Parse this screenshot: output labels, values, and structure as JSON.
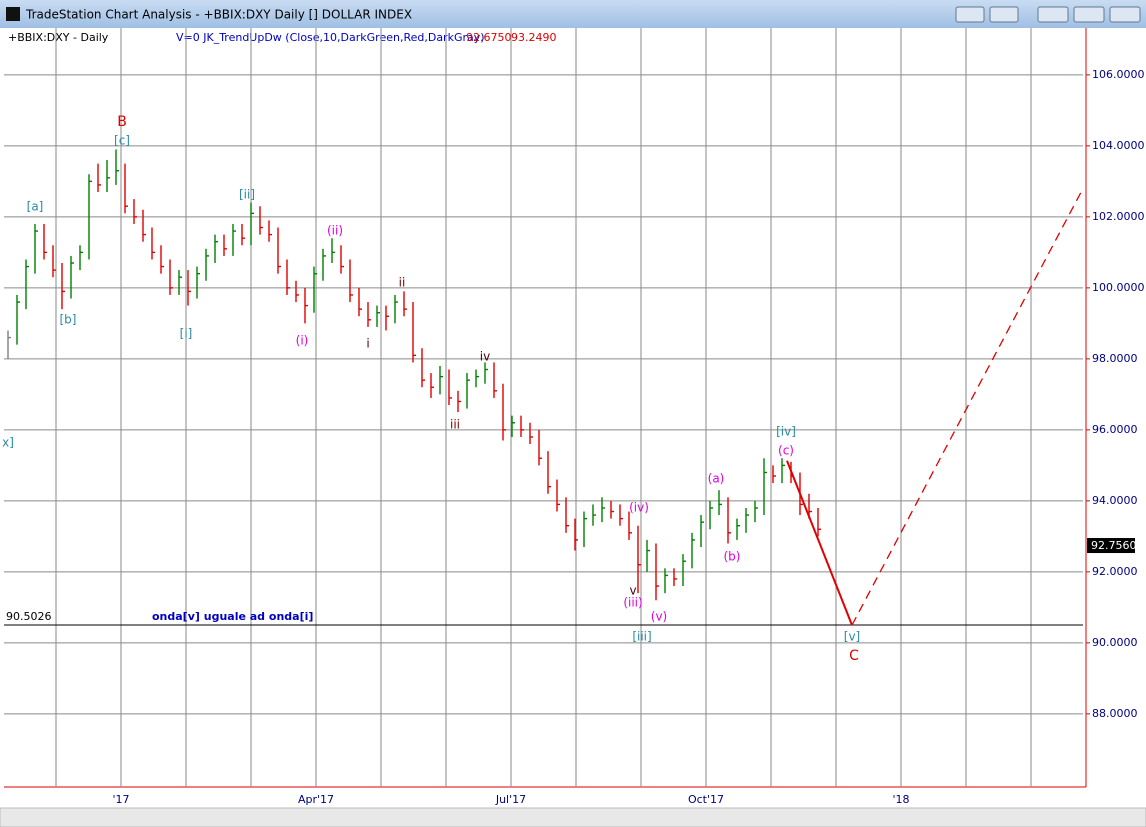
{
  "window_title": "TradeStation Chart Analysis - +BBIX:DXY Daily [] DOLLAR INDEX",
  "chart_data": {
    "type": "ohlc",
    "symbol_label": "+BBIX:DXY - Daily",
    "indicator_label": "V=0  JK_TrendUpDw (Close,10,DarkGreen,Red,DarkGray)",
    "indicator_values": [
      "92.6750",
      "93.2490"
    ],
    "up_color": "#008000",
    "down_color": "#e00000",
    "flat_color": "#808080",
    "grid": true,
    "ylim": [
      85.94,
      107.32
    ],
    "yticks": [
      {
        "value": 88,
        "label": "88.0000"
      },
      {
        "value": 90,
        "label": "90.0000"
      },
      {
        "value": 92,
        "label": "92.0000"
      },
      {
        "value": 94,
        "label": "94.0000"
      },
      {
        "value": 96,
        "label": "96.0000"
      },
      {
        "value": 98,
        "label": "98.0000"
      },
      {
        "value": 100,
        "label": "100.0000"
      },
      {
        "value": 102,
        "label": "102.0000"
      },
      {
        "value": 104,
        "label": "104.0000"
      },
      {
        "value": 106,
        "label": "106.0000"
      }
    ],
    "xtick_labels": [
      "'17",
      "Apr'17",
      "Jul'17",
      "Oct'17",
      "'18"
    ],
    "high": [
      98.8,
      99.8,
      100.8,
      101.8,
      101.8,
      101.2,
      100.7,
      100.9,
      101.2,
      103.2,
      103.5,
      103.6,
      103.9,
      103.5,
      102.5,
      102.2,
      101.7,
      101.2,
      100.8,
      100.5,
      100.5,
      100.6,
      101.1,
      101.5,
      101.5,
      101.8,
      101.8,
      102.4,
      102.3,
      101.9,
      101.7,
      100.8,
      100.2,
      100.0,
      100.6,
      101.1,
      101.4,
      101.2,
      100.8,
      100.0,
      99.6,
      99.5,
      99.5,
      99.8,
      99.9,
      99.6,
      98.3,
      97.6,
      97.8,
      97.7,
      97.1,
      97.6,
      97.7,
      97.9,
      97.9,
      97.3,
      96.4,
      96.4,
      96.2,
      96.0,
      95.4,
      94.6,
      94.1,
      93.5,
      93.7,
      93.9,
      94.1,
      94.0,
      93.9,
      93.7,
      93.3,
      92.9,
      92.8,
      92.1,
      92.1,
      92.5,
      93.1,
      93.6,
      94.0,
      94.3,
      94.1,
      93.5,
      93.8,
      94.0,
      95.2,
      95.0,
      95.2,
      95.1,
      94.8,
      94.2,
      93.8
    ],
    "low": [
      98.0,
      98.4,
      99.4,
      100.4,
      100.8,
      100.3,
      99.4,
      99.7,
      100.5,
      100.8,
      102.7,
      102.7,
      102.9,
      102.1,
      101.8,
      101.3,
      100.8,
      100.4,
      99.8,
      99.8,
      99.5,
      99.7,
      100.2,
      100.7,
      100.9,
      100.9,
      101.2,
      101.2,
      101.5,
      101.3,
      100.4,
      99.8,
      99.6,
      99.0,
      99.3,
      100.2,
      100.7,
      100.4,
      99.6,
      99.2,
      98.9,
      98.9,
      98.8,
      99.0,
      99.2,
      97.9,
      97.2,
      96.9,
      97.0,
      96.7,
      96.5,
      96.6,
      97.2,
      97.3,
      96.9,
      95.7,
      95.8,
      95.8,
      95.6,
      95.0,
      94.2,
      93.7,
      93.1,
      92.6,
      92.7,
      93.3,
      93.4,
      93.5,
      93.3,
      92.9,
      91.4,
      92.0,
      91.2,
      91.4,
      91.6,
      91.6,
      92.1,
      92.7,
      93.2,
      93.6,
      92.8,
      92.9,
      93.1,
      93.4,
      93.6,
      94.5,
      94.5,
      94.5,
      93.6,
      93.5,
      93.0
    ],
    "close": [
      98.6,
      99.6,
      100.6,
      101.6,
      101.0,
      100.5,
      99.9,
      100.7,
      101.0,
      103.0,
      102.9,
      103.1,
      103.3,
      102.3,
      102.0,
      101.5,
      101.0,
      100.6,
      100.0,
      100.3,
      99.9,
      100.4,
      100.9,
      101.3,
      101.1,
      101.6,
      101.4,
      102.1,
      101.7,
      101.5,
      100.6,
      100.0,
      99.8,
      99.5,
      100.4,
      100.9,
      101.0,
      100.6,
      99.8,
      99.4,
      99.1,
      99.3,
      99.2,
      99.6,
      99.4,
      98.1,
      97.4,
      97.2,
      97.5,
      96.9,
      96.8,
      97.4,
      97.5,
      97.7,
      97.1,
      96.0,
      96.2,
      96.0,
      95.8,
      95.2,
      94.4,
      93.9,
      93.3,
      92.9,
      93.5,
      93.6,
      93.8,
      93.7,
      93.5,
      93.1,
      92.2,
      92.6,
      91.6,
      91.9,
      91.8,
      92.3,
      92.9,
      93.4,
      93.8,
      93.9,
      93.1,
      93.3,
      93.6,
      93.8,
      94.8,
      94.7,
      95.0,
      94.7,
      93.9,
      93.7,
      93.2
    ],
    "last_price": {
      "value": 92.756,
      "label": "92.7560"
    },
    "hline": {
      "value": 90.5026,
      "label": "90.5026",
      "note": "onda[v] uguale ad onda[i]"
    },
    "projection_solid": [
      95.13,
      90.5
    ],
    "projection_dashed": [
      90.5,
      102.8
    ],
    "annotations": [
      {
        "text": "x]",
        "color": "#2a8aa8"
      },
      {
        "text": "[a]",
        "color": "#2a8aa8"
      },
      {
        "text": "[b]",
        "color": "#2a8aa8"
      },
      {
        "text": "B",
        "color": "#e00000"
      },
      {
        "text": "[c]",
        "color": "#2a8aa8"
      },
      {
        "text": "[i]",
        "color": "#2a8aa8"
      },
      {
        "text": "[ii]",
        "color": "#2a8aa8"
      },
      {
        "text": "(i)",
        "color": "#e000e0"
      },
      {
        "text": "(ii)",
        "color": "#e000e0"
      },
      {
        "text": "i",
        "color": "#500000"
      },
      {
        "text": "ii",
        "color": "#800000"
      },
      {
        "text": "iii",
        "color": "#800000"
      },
      {
        "text": "iv",
        "color": "#500000"
      },
      {
        "text": "(iv)",
        "color": "#e000e0"
      },
      {
        "text": "v",
        "color": "#500000"
      },
      {
        "text": "(iii)",
        "color": "#e000e0"
      },
      {
        "text": "(v)",
        "color": "#e000e0"
      },
      {
        "text": "[iii]",
        "color": "#2a8aa8"
      },
      {
        "text": "(a)",
        "color": "#e000e0"
      },
      {
        "text": "(b)",
        "color": "#e000e0"
      },
      {
        "text": "[iv]",
        "color": "#2a8aa8"
      },
      {
        "text": "(c)",
        "color": "#e000e0"
      },
      {
        "text": "[v]",
        "color": "#2a8aa8"
      },
      {
        "text": "C",
        "color": "#e00000"
      }
    ]
  }
}
